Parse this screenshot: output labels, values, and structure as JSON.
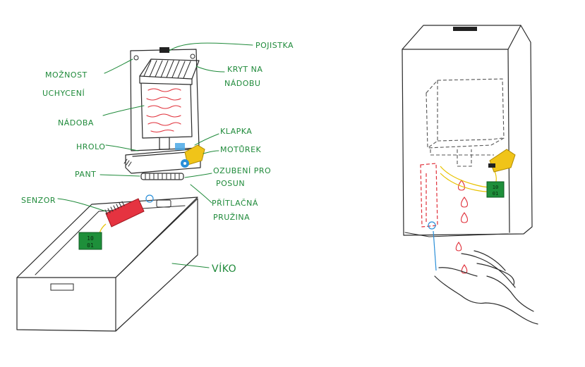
{
  "labels": {
    "pojistka": "POJISTKA",
    "moznost": "MOŽNOST",
    "uchyceni": "UCHYCENÍ",
    "kryt_na": "KRYT NA",
    "nadobu": "NÁDOBU",
    "nadoba": "NÁDOBA",
    "klapka": "KLAPKA",
    "hrolo": "HROLO",
    "motorek": "MOTŮREK",
    "pant": "PANT",
    "ozubeni_pro": "OZUBENÍ PRO",
    "posun": "POSUN",
    "senzor": "SENZOR",
    "pritlacna": "PŘÍTLAČNÁ",
    "pruzina": "PRUŽINA",
    "viko": "VÍKO",
    "chip_top": "10",
    "chip_bottom": "01",
    "chip2_top": "10",
    "chip2_bottom": "01"
  },
  "colors": {
    "label_green": "#1f8a3a",
    "container_red": "#e0303a",
    "sensor_red": "#e53340",
    "motor_yellow": "#f0c419",
    "chip_green": "#1e8f3a",
    "gear_blue": "#2a8fd8"
  }
}
